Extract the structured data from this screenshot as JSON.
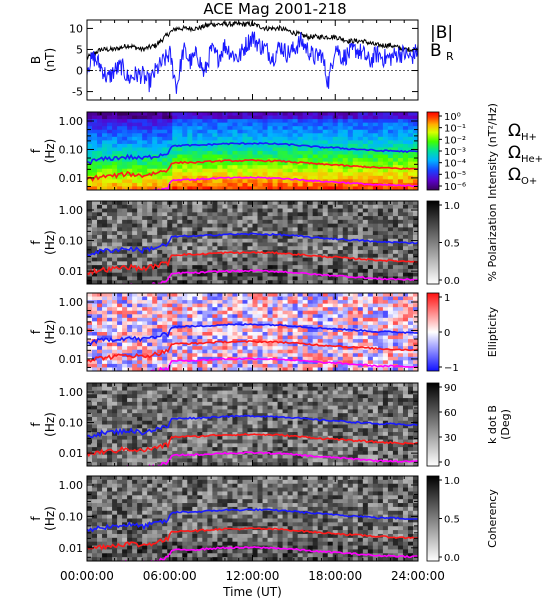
{
  "chart_data": {
    "title": "ACE Mag 2001-218",
    "xlabel": "Time (UT)",
    "x_tick_labels": [
      "00:00:00",
      "06:00:00",
      "12:00:00",
      "18:00:00",
      "24:00:00"
    ],
    "xlim_hours": [
      0,
      24
    ],
    "panels": [
      {
        "id": "B",
        "type": "line",
        "ylabel": "B",
        "yunit": "(nT)",
        "ylim": [
          -7,
          12
        ],
        "y_ticks": [
          -5,
          0,
          5,
          10
        ],
        "legend": [
          "|B|",
          "B",
          "R"
        ],
        "series": [
          {
            "name": "|B|",
            "color": "#000000",
            "x": [
              0,
              1,
              2,
              3,
              4,
              5,
              6,
              6.5,
              7,
              8,
              9,
              10,
              11,
              12,
              13,
              14,
              15,
              16,
              17,
              18,
              19,
              20,
              21,
              22,
              23,
              24
            ],
            "values": [
              3,
              5,
              5,
              6,
              5,
              6,
              9,
              10,
              10,
              10,
              11,
              11,
              11,
              11,
              10,
              10,
              9,
              8,
              8,
              8,
              7,
              7,
              6,
              6,
              5,
              5
            ]
          },
          {
            "name": "B_R",
            "color": "#1a1aff",
            "x": [
              0,
              0.5,
              1,
              1.5,
              2,
              2.5,
              3,
              3.5,
              4,
              4.5,
              5,
              5.5,
              6,
              6.5,
              7,
              7.5,
              8,
              8.5,
              9,
              9.5,
              10,
              10.5,
              11,
              11.5,
              12,
              12.5,
              13,
              13.5,
              14,
              14.5,
              15,
              15.5,
              16,
              16.5,
              17,
              17.5,
              18,
              18.5,
              19,
              19.5,
              20,
              20.5,
              21,
              21.5,
              22,
              22.5,
              23,
              23.5,
              24
            ],
            "values": [
              1,
              3,
              1,
              -2,
              0,
              1,
              -2,
              -1,
              -1,
              -3,
              0,
              2,
              4,
              -4,
              5,
              2,
              4,
              -1,
              5,
              3,
              6,
              4,
              3,
              6,
              8,
              6,
              5,
              3,
              6,
              4,
              5,
              7,
              5,
              3,
              4,
              -3,
              6,
              3,
              4,
              5,
              4,
              2,
              4,
              3,
              3,
              4,
              4,
              3,
              5
            ]
          }
        ]
      },
      {
        "id": "intensity",
        "type": "heatmap",
        "ylabel": "f",
        "yunit": "(Hz)",
        "y_ticks": [
          "1.00",
          "0.10",
          "0.01"
        ],
        "colorbar_label": "Intensity (nT²/Hz)",
        "colorbar_ticks": [
          "10⁰",
          "10⁻¹",
          "10⁻²",
          "10⁻³",
          "10⁻⁴",
          "10⁻⁵",
          "10⁻⁶"
        ],
        "colorbar_scale": "rainbow",
        "legend": [
          {
            "label": "Ω",
            "sub": "H+",
            "color": "#1a1aff"
          },
          {
            "label": "Ω",
            "sub": "He+",
            "color": "#ff1a1a"
          },
          {
            "label": "Ω",
            "sub": "O+",
            "color": "#ff00ff"
          }
        ]
      },
      {
        "id": "polarization",
        "type": "heatmap",
        "ylabel": "f",
        "yunit": "(Hz)",
        "y_ticks": [
          "1.00",
          "0.10",
          "0.01"
        ],
        "colorbar_label": "% Polarization",
        "colorbar_ticks": [
          "1.0",
          "0.5",
          "0.0"
        ],
        "colorbar_scale": "grayscale"
      },
      {
        "id": "ellipticity",
        "type": "heatmap",
        "ylabel": "f",
        "yunit": "(Hz)",
        "y_ticks": [
          "1.00",
          "0.10",
          "0.01"
        ],
        "colorbar_label": "Ellipticity",
        "colorbar_ticks": [
          "1",
          "0",
          "−1"
        ],
        "colorbar_scale": "blue-white-red"
      },
      {
        "id": "kdotb",
        "type": "heatmap",
        "ylabel": "f",
        "yunit": "(Hz)",
        "y_ticks": [
          "1.00",
          "0.10",
          "0.01"
        ],
        "colorbar_label": "k dot B",
        "colorbar_unit": "(Deg)",
        "colorbar_ticks": [
          "90",
          "60",
          "30",
          "0"
        ],
        "colorbar_scale": "grayscale"
      },
      {
        "id": "coherency",
        "type": "heatmap",
        "ylabel": "f",
        "yunit": "(Hz)",
        "y_ticks": [
          "1.00",
          "0.10",
          "0.01"
        ],
        "colorbar_label": "Coherency",
        "colorbar_ticks": [
          "1.0",
          "0.5",
          "0.0"
        ],
        "colorbar_scale": "grayscale"
      }
    ],
    "gyrofrequency_lines_hz": {
      "x": [
        0,
        1,
        2,
        3,
        4,
        5,
        5.9,
        6.1,
        7,
        8,
        9,
        10,
        11,
        12,
        13,
        14,
        15,
        16,
        17,
        18,
        19,
        20,
        21,
        22,
        23,
        24
      ],
      "H+": [
        0.035,
        0.045,
        0.05,
        0.055,
        0.048,
        0.06,
        0.075,
        0.13,
        0.14,
        0.14,
        0.15,
        0.16,
        0.16,
        0.165,
        0.16,
        0.155,
        0.145,
        0.13,
        0.12,
        0.115,
        0.105,
        0.1,
        0.09,
        0.09,
        0.085,
        0.085
      ],
      "He+": [
        0.009,
        0.011,
        0.012,
        0.014,
        0.012,
        0.015,
        0.019,
        0.033,
        0.035,
        0.035,
        0.038,
        0.04,
        0.04,
        0.041,
        0.04,
        0.039,
        0.036,
        0.033,
        0.03,
        0.029,
        0.026,
        0.025,
        0.023,
        0.022,
        0.021,
        0.021
      ],
      "O+": [
        0.0022,
        0.0028,
        0.003,
        0.0034,
        0.003,
        0.0037,
        0.0047,
        0.0082,
        0.0088,
        0.0088,
        0.0095,
        0.01,
        0.01,
        0.0103,
        0.01,
        0.0097,
        0.009,
        0.0082,
        0.0075,
        0.0072,
        0.0066,
        0.0062,
        0.0056,
        0.0056,
        0.0053,
        0.0053
      ]
    }
  }
}
